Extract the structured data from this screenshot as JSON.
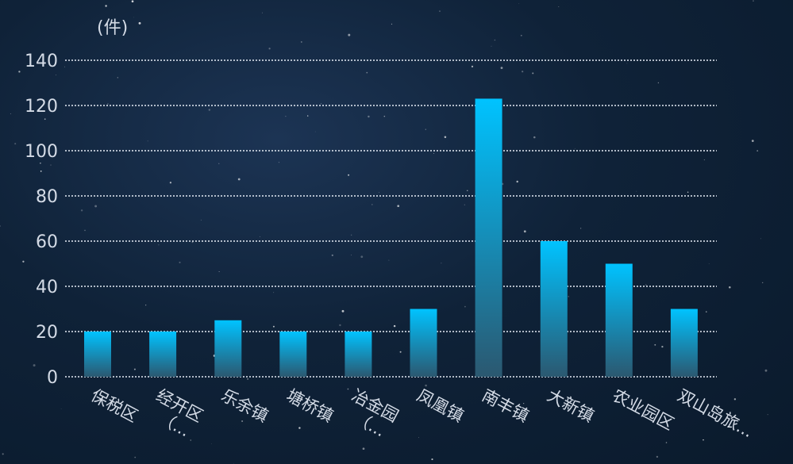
{
  "chart_data": {
    "type": "bar",
    "unit_label": "(件)",
    "categories": [
      "保税区",
      "经开区（...",
      "乐余镇",
      "塘桥镇",
      "冶金园（...",
      "凤凰镇",
      "南丰镇",
      "大新镇",
      "农业园区",
      "双山岛旅..."
    ],
    "values": [
      20,
      20,
      25,
      20,
      20,
      30,
      123,
      60,
      50,
      30
    ],
    "ylim": [
      0,
      140
    ],
    "yticks": [
      0,
      20,
      40,
      60,
      80,
      100,
      120,
      140
    ],
    "grid": true,
    "legend": "none",
    "colors": {
      "bar_top": "#00c3ff",
      "bar_bottom": "#2b5870",
      "background": "#0f2238"
    }
  }
}
